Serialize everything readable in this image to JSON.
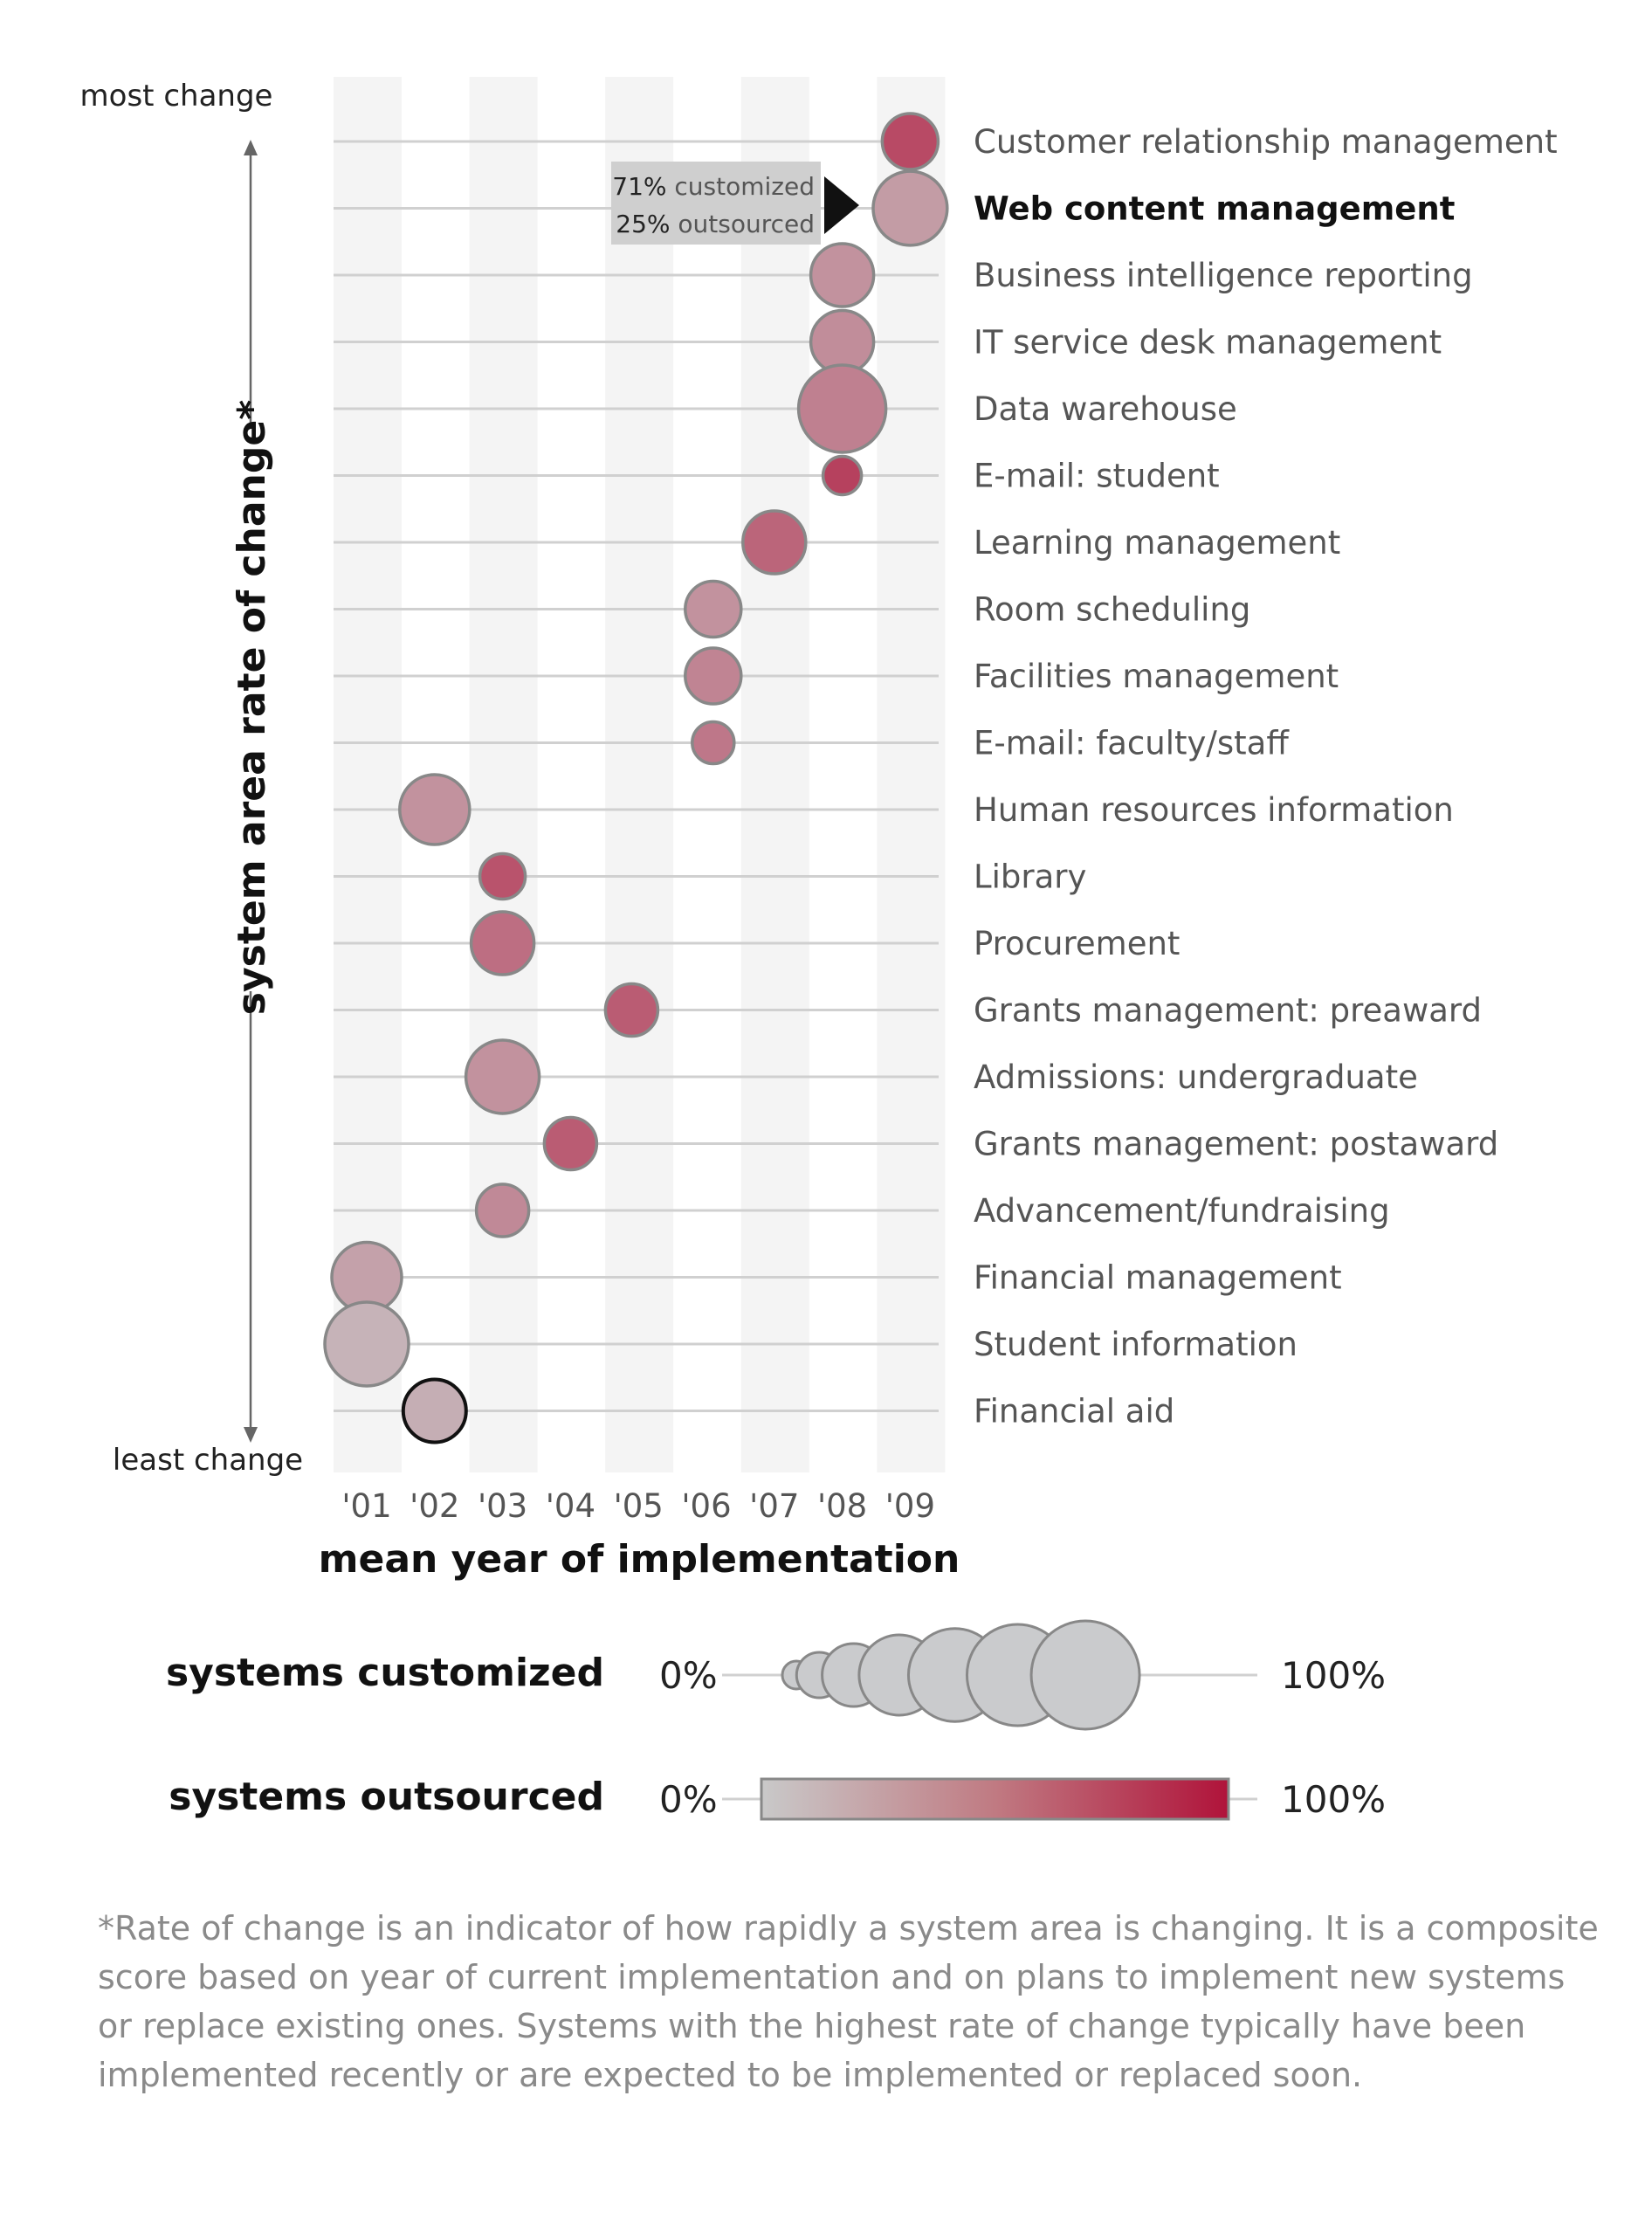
{
  "chart_data": {
    "type": "scatter",
    "title": "",
    "xlabel": "mean year of implementation",
    "ylabel": "system area rate of change*",
    "y_top_label": "most change",
    "y_bottom_label": "least change",
    "x_ticks": [
      "'01",
      "'02",
      "'03",
      "'04",
      "'05",
      "'06",
      "'07",
      "'08",
      "'09"
    ],
    "xlim": [
      2001,
      2009
    ],
    "grid": true,
    "points": [
      {
        "name": "Customer relationship management",
        "year": 2009.0,
        "customized": 0.45,
        "outsourced": 0.7
      },
      {
        "name": "Web content management",
        "year": 2009.0,
        "customized": 0.71,
        "outsourced": 0.25,
        "highlight": true
      },
      {
        "name": "Business intelligence reporting",
        "year": 2008.0,
        "customized": 0.55,
        "outsourced": 0.3
      },
      {
        "name": "IT service desk management",
        "year": 2008.0,
        "customized": 0.55,
        "outsourced": 0.33
      },
      {
        "name": "Data warehouse",
        "year": 2008.0,
        "customized": 0.9,
        "outsourced": 0.4
      },
      {
        "name": "E-mail: student",
        "year": 2008.0,
        "customized": 0.2,
        "outsourced": 0.75
      },
      {
        "name": "Learning management",
        "year": 2007.0,
        "customized": 0.55,
        "outsourced": 0.55
      },
      {
        "name": "Room scheduling",
        "year": 2006.1,
        "customized": 0.45,
        "outsourced": 0.3
      },
      {
        "name": "Facilities management",
        "year": 2006.1,
        "customized": 0.45,
        "outsourced": 0.38
      },
      {
        "name": "E-mail: faculty/staff",
        "year": 2006.1,
        "customized": 0.25,
        "outsourced": 0.45
      },
      {
        "name": "Human resources information",
        "year": 2002.0,
        "customized": 0.65,
        "outsourced": 0.3
      },
      {
        "name": "Library",
        "year": 2003.0,
        "customized": 0.3,
        "outsourced": 0.65
      },
      {
        "name": "Procurement",
        "year": 2003.0,
        "customized": 0.55,
        "outsourced": 0.5
      },
      {
        "name": "Grants management: preaward",
        "year": 2004.9,
        "customized": 0.4,
        "outsourced": 0.6
      },
      {
        "name": "Admissions: undergraduate",
        "year": 2003.0,
        "customized": 0.7,
        "outsourced": 0.3
      },
      {
        "name": "Grants management: postaward",
        "year": 2004.0,
        "customized": 0.4,
        "outsourced": 0.6
      },
      {
        "name": "Advancement/fundraising",
        "year": 2003.0,
        "customized": 0.4,
        "outsourced": 0.35
      },
      {
        "name": "Financial management",
        "year": 2001.0,
        "customized": 0.65,
        "outsourced": 0.22
      },
      {
        "name": "Student information",
        "year": 2001.0,
        "customized": 0.85,
        "outsourced": 0.12
      },
      {
        "name": "Financial aid",
        "year": 2002.0,
        "customized": 0.55,
        "outsourced": 0.15
      }
    ],
    "callout": {
      "target": "Web content management",
      "customized_value": "71%",
      "customized_text": " customized",
      "outsourced_value": "25%",
      "outsourced_text": " outsourced"
    },
    "legend": {
      "size": {
        "title": "systems customized",
        "min_label": "0%",
        "max_label": "100%"
      },
      "color": {
        "title": "systems outsourced",
        "min_label": "0%",
        "max_label": "100%",
        "from_color": "#c9c9c9",
        "to_color": "#b0133a"
      }
    },
    "colors": {
      "bubble_low": "#c9c9c9",
      "bubble_high": "#b0133a",
      "stripe": "#f4f4f4",
      "gridline": "#d0d0d0",
      "bubble_outline": "#888888",
      "callout_bg": "#cfcfcf"
    }
  },
  "footnote": "*Rate of change is an indicator of how rapidly a system area is changing. It is a composite score based on year of current implementation and on plans to implement new systems or replace existing ones. Systems with the highest rate of change typically have been implemented recently or are expected to be implemented or replaced soon."
}
